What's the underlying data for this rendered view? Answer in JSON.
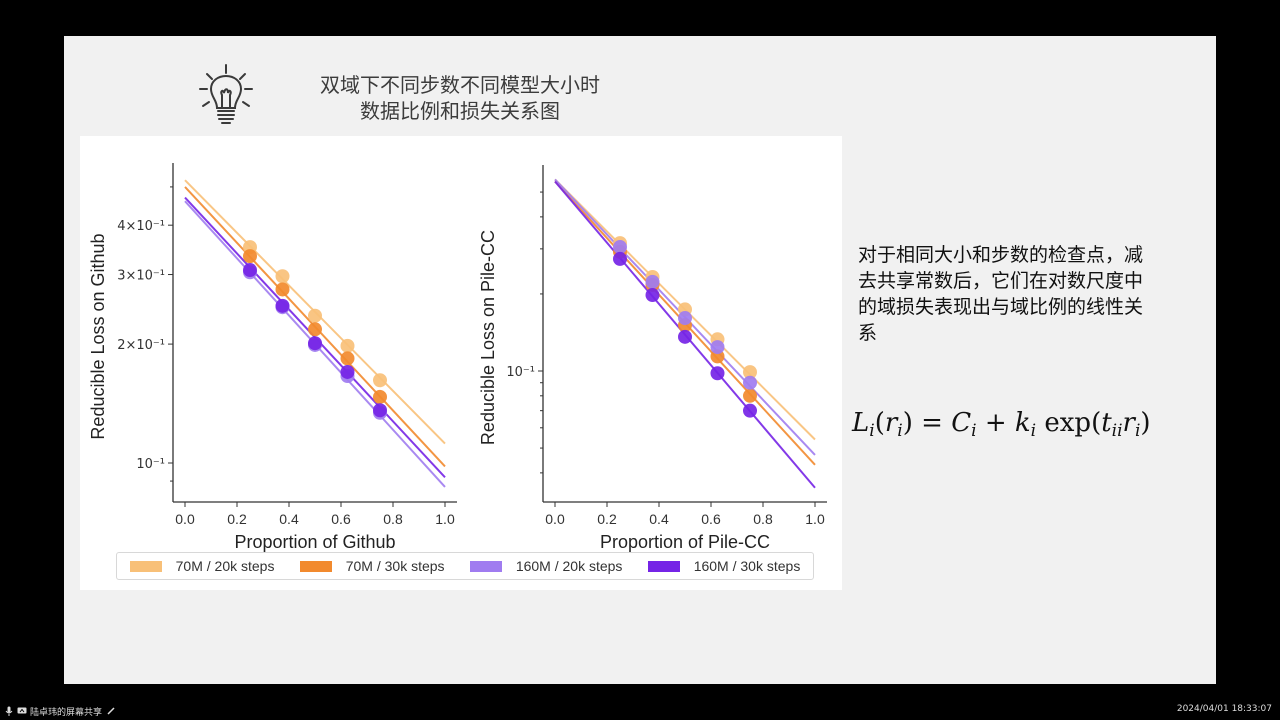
{
  "slide": {
    "title_line1": "双域下不同步数不同模型大小时",
    "title_line2": "数据比例和损失关系图",
    "description": "对于相同大小和步数的检查点，减去共享常数后，它们在对数尺度中的域损失表现出与域比例的线性关系",
    "formula": {
      "L": "L",
      "i": "i",
      "r": "r",
      "eq": " = ",
      "C": "C",
      "plus": " + ",
      "k": "k",
      "exp": " exp",
      "t": "t",
      "ii": "ii"
    },
    "icon": "lightbulb-icon"
  },
  "legend": [
    {
      "label": "70M / 20k steps",
      "color": "#f8c078"
    },
    {
      "label": "70M / 30k steps",
      "color": "#f28a2e"
    },
    {
      "label": "160M / 20k steps",
      "color": "#a07cf0"
    },
    {
      "label": "160M / 30k steps",
      "color": "#7524e6"
    }
  ],
  "chart_data": [
    {
      "type": "scatter",
      "title": "",
      "xlabel": "Proportion of Github",
      "ylabel": "Reducible Loss on Github",
      "yscale": "log",
      "xlim": [
        -0.04,
        1.04
      ],
      "ylim": [
        0.085,
        0.6
      ],
      "xticks": [
        "0.0",
        "0.2",
        "0.4",
        "0.6",
        "0.8",
        "1.0"
      ],
      "yticks": [
        {
          "value": 0.4,
          "label": "4×10⁻¹"
        },
        {
          "value": 0.3,
          "label": "3×10⁻¹"
        },
        {
          "value": 0.2,
          "label": "2×10⁻¹"
        },
        {
          "value": 0.1,
          "label": "10⁻¹"
        }
      ],
      "minor_yticks": [
        0.5,
        0.09
      ],
      "grid": false,
      "legend_position": "bottom",
      "x": [
        0.25,
        0.375,
        0.5,
        0.625,
        0.75
      ],
      "series": [
        {
          "name": "70M / 20k steps",
          "values": [
            0.352,
            0.297,
            0.236,
            0.198,
            0.162
          ],
          "fit": [
            [
              0,
              0.52
            ],
            [
              1,
              0.112
            ]
          ]
        },
        {
          "name": "70M / 30k steps",
          "values": [
            0.334,
            0.275,
            0.218,
            0.184,
            0.147
          ],
          "fit": [
            [
              0,
              0.5
            ],
            [
              1,
              0.098
            ]
          ]
        },
        {
          "name": "160M / 20k steps",
          "values": [
            0.304,
            0.248,
            0.199,
            0.166,
            0.134
          ],
          "fit": [
            [
              0,
              0.46
            ],
            [
              1,
              0.087
            ]
          ]
        },
        {
          "name": "160M / 30k steps",
          "values": [
            0.308,
            0.25,
            0.201,
            0.17,
            0.136
          ],
          "fit": [
            [
              0,
              0.47
            ],
            [
              1,
              0.092
            ]
          ]
        }
      ]
    },
    {
      "type": "scatter",
      "title": "",
      "xlabel": "Proportion of Pile-CC",
      "ylabel": "Reducible Loss on Pile-CC",
      "yscale": "log",
      "xlim": [
        -0.04,
        1.04
      ],
      "ylim": [
        0.031,
        0.6
      ],
      "xticks": [
        "0.0",
        "0.2",
        "0.4",
        "0.6",
        "0.8",
        "1.0"
      ],
      "yticks": [
        {
          "value": 0.1,
          "label": "10⁻¹"
        }
      ],
      "minor_yticks": [
        0.5,
        0.4,
        0.3,
        0.2,
        0.09,
        0.08,
        0.07,
        0.06,
        0.05,
        0.04
      ],
      "grid": false,
      "legend_position": "bottom",
      "x": [
        0.25,
        0.375,
        0.5,
        0.625,
        0.75
      ],
      "series": [
        {
          "name": "70M / 20k steps",
          "values": [
            0.316,
            0.233,
            0.174,
            0.133,
            0.099
          ],
          "fit": [
            [
              0,
              0.56
            ],
            [
              1,
              0.054
            ]
          ]
        },
        {
          "name": "70M / 30k steps",
          "values": [
            0.292,
            0.217,
            0.151,
            0.114,
            0.08
          ],
          "fit": [
            [
              0,
              0.55
            ],
            [
              1,
              0.043
            ]
          ]
        },
        {
          "name": "160M / 20k steps",
          "values": [
            0.305,
            0.223,
            0.161,
            0.124,
            0.09
          ],
          "fit": [
            [
              0,
              0.56
            ],
            [
              1,
              0.047
            ]
          ]
        },
        {
          "name": "160M / 30k steps",
          "values": [
            0.274,
            0.198,
            0.136,
            0.098,
            0.07
          ],
          "fit": [
            [
              0,
              0.55
            ],
            [
              1,
              0.035
            ]
          ]
        }
      ]
    }
  ],
  "taskbar": {
    "share_label": "陆卓玮的屏幕共享",
    "timestamp": "2024/04/01 18:33:07"
  }
}
